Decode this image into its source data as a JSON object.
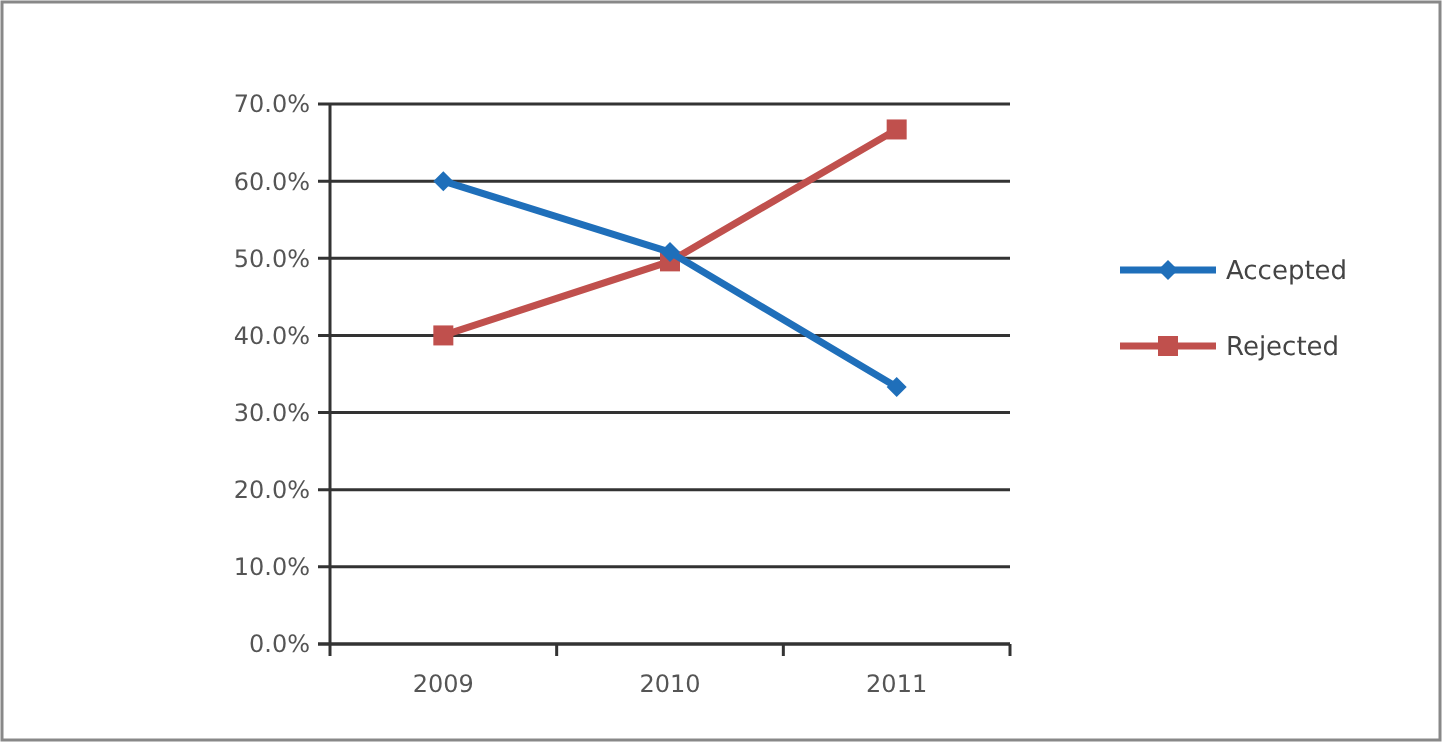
{
  "chart_data": {
    "type": "line",
    "categories": [
      "2009",
      "2010",
      "2011"
    ],
    "series": [
      {
        "name": "Accepted",
        "color": "#1f6fba",
        "marker": "diamond",
        "values": [
          60,
          50.8,
          33.3
        ]
      },
      {
        "name": "Rejected",
        "color": "#c0504d",
        "marker": "square",
        "values": [
          40,
          49.6,
          66.7
        ]
      }
    ],
    "ylim": [
      0,
      70
    ],
    "yticks": [
      {
        "value": 0,
        "label": "0.0%"
      },
      {
        "value": 10,
        "label": "10.0%"
      },
      {
        "value": 20,
        "label": "20.0%"
      },
      {
        "value": 30,
        "label": "30.0%"
      },
      {
        "value": 40,
        "label": "40.0%"
      },
      {
        "value": 50,
        "label": "50.0%"
      },
      {
        "value": 60,
        "label": "60.0%"
      },
      {
        "value": 70,
        "label": "70.0%"
      }
    ],
    "grid": "y",
    "legend": "right",
    "line_style": "solid"
  }
}
